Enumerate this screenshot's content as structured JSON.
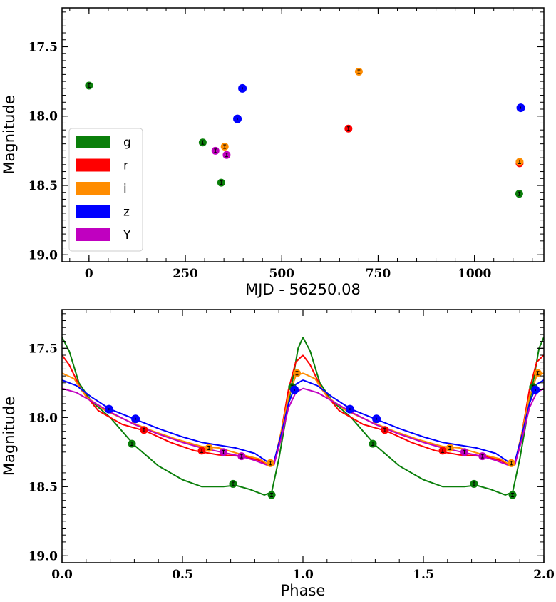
{
  "chart_data": [
    {
      "type": "scatter",
      "xlabel": "MJD - 56250.08",
      "ylabel": "Magnitude",
      "xlim": [
        -70,
        1180
      ],
      "ylim": [
        19.05,
        17.22
      ],
      "y_inverted": true,
      "xticks": [
        0,
        250,
        500,
        750,
        1000
      ],
      "xtick_labels": [
        "0",
        "250",
        "500",
        "750",
        "1000"
      ],
      "yticks": [
        17.5,
        18.0,
        18.5,
        19.0
      ],
      "ytick_labels": [
        "17.5",
        "18.0",
        "18.5",
        "19.0"
      ],
      "legend_position": "center-left",
      "legend_entries": [
        "g",
        "r",
        "i",
        "z",
        "Y"
      ],
      "series": [
        {
          "name": "g",
          "color": "#0a7f0a",
          "points": [
            [
              0,
              17.78
            ],
            [
              295,
              18.19
            ],
            [
              343,
              18.48
            ],
            [
              1116,
              18.56
            ]
          ]
        },
        {
          "name": "r",
          "color": "#ff0000",
          "points": [
            [
              673,
              18.09
            ],
            [
              1117,
              18.34
            ]
          ]
        },
        {
          "name": "i",
          "color": "#ff8c00",
          "points": [
            [
              352,
              18.22
            ],
            [
              700,
              17.68
            ],
            [
              1117,
              18.33
            ]
          ]
        },
        {
          "name": "z",
          "color": "#0000ff",
          "points": [
            [
              385,
              18.02
            ],
            [
              398,
              17.8
            ],
            [
              1120,
              17.94
            ]
          ]
        },
        {
          "name": "Y",
          "color": "#c000c0",
          "points": [
            [
              328,
              18.25
            ],
            [
              357,
              18.28
            ]
          ]
        }
      ]
    },
    {
      "type": "line",
      "xlabel": "Phase",
      "ylabel": "Magnitude",
      "xlim": [
        0.0,
        2.0
      ],
      "ylim": [
        19.05,
        17.22
      ],
      "y_inverted": true,
      "xticks": [
        0.0,
        0.5,
        1.0,
        1.5,
        2.0
      ],
      "xtick_labels": [
        "0.0",
        "0.5",
        "1.0",
        "1.5",
        "2.0"
      ],
      "yticks": [
        17.5,
        18.0,
        18.5,
        19.0
      ],
      "ytick_labels": [
        "17.5",
        "18.0",
        "18.5",
        "19.0"
      ],
      "series": [
        {
          "name": "g",
          "color": "#0a7f0a",
          "curve": [
            [
              0.0,
              17.42
            ],
            [
              0.03,
              17.52
            ],
            [
              0.07,
              17.75
            ],
            [
              0.12,
              17.88
            ],
            [
              0.2,
              18.0
            ],
            [
              0.3,
              18.2
            ],
            [
              0.4,
              18.35
            ],
            [
              0.5,
              18.45
            ],
            [
              0.58,
              18.5
            ],
            [
              0.63,
              18.5
            ],
            [
              0.67,
              18.5
            ],
            [
              0.72,
              18.49
            ],
            [
              0.78,
              18.52
            ],
            [
              0.84,
              18.56
            ],
            [
              0.87,
              18.54
            ],
            [
              0.9,
              18.3
            ],
            [
              0.93,
              18.0
            ],
            [
              0.96,
              17.7
            ],
            [
              0.98,
              17.5
            ],
            [
              1.0,
              17.42
            ]
          ],
          "points": [
            [
              0.29,
              18.19
            ],
            [
              0.71,
              18.48
            ],
            [
              0.87,
              18.56
            ],
            [
              0.955,
              17.78
            ]
          ]
        },
        {
          "name": "r",
          "color": "#ff0000",
          "curve": [
            [
              0.0,
              17.55
            ],
            [
              0.03,
              17.62
            ],
            [
              0.08,
              17.8
            ],
            [
              0.15,
              17.95
            ],
            [
              0.25,
              18.05
            ],
            [
              0.35,
              18.1
            ],
            [
              0.45,
              18.18
            ],
            [
              0.55,
              18.24
            ],
            [
              0.65,
              18.27
            ],
            [
              0.75,
              18.28
            ],
            [
              0.82,
              18.31
            ],
            [
              0.86,
              18.35
            ],
            [
              0.88,
              18.34
            ],
            [
              0.91,
              18.1
            ],
            [
              0.94,
              17.8
            ],
            [
              0.97,
              17.6
            ],
            [
              1.0,
              17.55
            ]
          ],
          "points": [
            [
              0.34,
              18.09
            ],
            [
              0.58,
              18.24
            ]
          ]
        },
        {
          "name": "i",
          "color": "#ff8c00",
          "curve": [
            [
              0.0,
              17.68
            ],
            [
              0.05,
              17.72
            ],
            [
              0.1,
              17.85
            ],
            [
              0.18,
              17.95
            ],
            [
              0.28,
              18.03
            ],
            [
              0.38,
              18.1
            ],
            [
              0.48,
              18.16
            ],
            [
              0.58,
              18.21
            ],
            [
              0.65,
              18.22
            ],
            [
              0.75,
              18.27
            ],
            [
              0.82,
              18.3
            ],
            [
              0.865,
              18.35
            ],
            [
              0.88,
              18.33
            ],
            [
              0.91,
              18.1
            ],
            [
              0.94,
              17.85
            ],
            [
              0.97,
              17.7
            ],
            [
              1.0,
              17.68
            ]
          ],
          "points": [
            [
              0.61,
              18.22
            ],
            [
              0.865,
              18.33
            ],
            [
              0.975,
              17.68
            ]
          ]
        },
        {
          "name": "z",
          "color": "#0000ff",
          "curve": [
            [
              0.0,
              17.73
            ],
            [
              0.06,
              17.77
            ],
            [
              0.12,
              17.85
            ],
            [
              0.2,
              17.94
            ],
            [
              0.3,
              18.01
            ],
            [
              0.4,
              18.08
            ],
            [
              0.5,
              18.14
            ],
            [
              0.58,
              18.18
            ],
            [
              0.65,
              18.2
            ],
            [
              0.72,
              18.22
            ],
            [
              0.8,
              18.26
            ],
            [
              0.86,
              18.33
            ],
            [
              0.88,
              18.32
            ],
            [
              0.91,
              18.12
            ],
            [
              0.94,
              17.9
            ],
            [
              0.97,
              17.76
            ],
            [
              1.0,
              17.73
            ]
          ],
          "points": [
            [
              0.195,
              17.94
            ],
            [
              0.305,
              18.01
            ],
            [
              0.965,
              17.8
            ]
          ]
        },
        {
          "name": "Y",
          "color": "#c000c0",
          "curve": [
            [
              0.0,
              17.79
            ],
            [
              0.06,
              17.82
            ],
            [
              0.12,
              17.88
            ],
            [
              0.2,
              17.96
            ],
            [
              0.3,
              18.05
            ],
            [
              0.4,
              18.12
            ],
            [
              0.5,
              18.18
            ],
            [
              0.58,
              18.22
            ],
            [
              0.66,
              18.25
            ],
            [
              0.74,
              18.28
            ],
            [
              0.8,
              18.31
            ],
            [
              0.86,
              18.35
            ],
            [
              0.88,
              18.34
            ],
            [
              0.91,
              18.15
            ],
            [
              0.94,
              17.93
            ],
            [
              0.97,
              17.82
            ],
            [
              1.0,
              17.79
            ]
          ],
          "points": [
            [
              0.67,
              18.25
            ],
            [
              0.745,
              18.28
            ]
          ]
        }
      ]
    }
  ]
}
